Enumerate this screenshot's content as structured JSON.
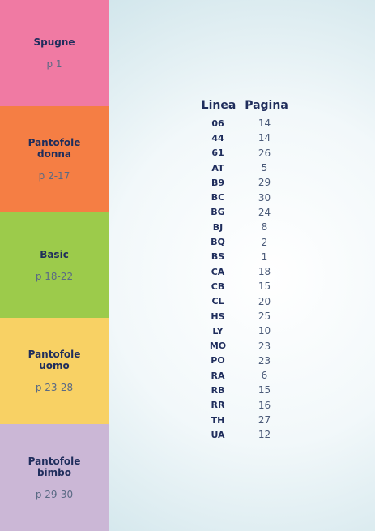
{
  "sections": [
    {
      "title": "Spugne",
      "pages": "p 1",
      "color": "#f07aa3"
    },
    {
      "title": "Pantofole\ndonna",
      "pages": "p 2-17",
      "color": "#f57e44"
    },
    {
      "title": "Basic",
      "pages": "p 18-22",
      "color": "#9ccb4b"
    },
    {
      "title": "Pantofole\nuomo",
      "pages": "p 23-28",
      "color": "#f8d164"
    },
    {
      "title": "Pantofole\nbimbo",
      "pages": "p 29-30",
      "color": "#cbb7d6"
    }
  ],
  "table": {
    "header_linea": "Linea",
    "header_pagina": "Pagina",
    "rows": [
      {
        "code": "06",
        "page": "14"
      },
      {
        "code": "44",
        "page": "14"
      },
      {
        "code": "61",
        "page": "26"
      },
      {
        "code": "AT",
        "page": "5"
      },
      {
        "code": "B9",
        "page": "29"
      },
      {
        "code": "BC",
        "page": "30"
      },
      {
        "code": "BG",
        "page": "24"
      },
      {
        "code": "BJ",
        "page": "8"
      },
      {
        "code": "BQ",
        "page": "2"
      },
      {
        "code": "BS",
        "page": "1"
      },
      {
        "code": "CA",
        "page": "18"
      },
      {
        "code": "CB",
        "page": "15"
      },
      {
        "code": "CL",
        "page": "20"
      },
      {
        "code": "HS",
        "page": "25"
      },
      {
        "code": "LY",
        "page": "10"
      },
      {
        "code": "MO",
        "page": "23"
      },
      {
        "code": "PO",
        "page": "23"
      },
      {
        "code": "RA",
        "page": "6"
      },
      {
        "code": "RB",
        "page": "15"
      },
      {
        "code": "RR",
        "page": "16"
      },
      {
        "code": "TH",
        "page": "27"
      },
      {
        "code": "UA",
        "page": "12"
      }
    ]
  }
}
